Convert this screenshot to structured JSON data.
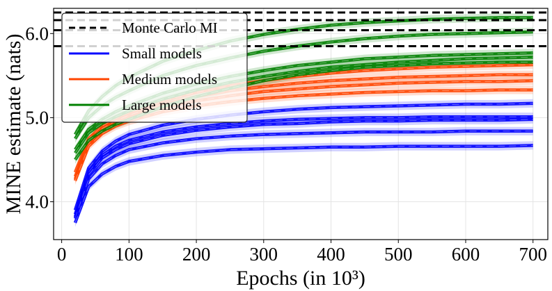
{
  "chart_data": {
    "type": "line",
    "xlabel": "Epochs (in 10³)",
    "ylabel": "MINE estimate (nats)",
    "xlim": [
      -12,
      722
    ],
    "ylim": [
      3.55,
      6.3
    ],
    "xticks": [
      0,
      100,
      200,
      300,
      400,
      500,
      600,
      700
    ],
    "yticks": [
      4.0,
      5.0,
      6.0
    ],
    "ytick_labels": [
      "4.0",
      "5.0",
      "6.0"
    ],
    "grid": true,
    "legend_position": "top-left",
    "x": [
      20,
      40,
      60,
      80,
      100,
      150,
      200,
      250,
      300,
      350,
      400,
      450,
      500,
      550,
      600,
      650,
      700
    ],
    "monte_carlo_mi": [
      6.25,
      6.16,
      6.04,
      5.85
    ],
    "series": [
      {
        "name": "Small models",
        "color": "#0000ff",
        "values": [
          3.9,
          4.4,
          4.6,
          4.72,
          4.8,
          4.91,
          4.98,
          5.03,
          5.07,
          5.1,
          5.12,
          5.13,
          5.14,
          5.15,
          5.16,
          5.16,
          5.17
        ]
      },
      {
        "name": "",
        "color": "#0000ff",
        "values": [
          3.85,
          4.35,
          4.55,
          4.66,
          4.73,
          4.83,
          4.89,
          4.93,
          4.96,
          4.98,
          4.99,
          5.0,
          5.0,
          5.01,
          5.01,
          5.01,
          5.01
        ]
      },
      {
        "name": "",
        "color": "#0000ff",
        "values": [
          3.82,
          4.32,
          4.52,
          4.62,
          4.69,
          4.79,
          4.85,
          4.89,
          4.92,
          4.93,
          4.95,
          4.96,
          4.96,
          4.97,
          4.97,
          4.97,
          4.98
        ]
      },
      {
        "name": "",
        "color": "#0000ff",
        "values": [
          3.8,
          4.27,
          4.45,
          4.55,
          4.62,
          4.7,
          4.75,
          4.78,
          4.8,
          4.81,
          4.82,
          4.83,
          4.83,
          4.83,
          4.84,
          4.84,
          4.84
        ]
      },
      {
        "name": "",
        "color": "#0000ff",
        "values": [
          3.75,
          4.18,
          4.33,
          4.42,
          4.48,
          4.55,
          4.59,
          4.62,
          4.63,
          4.64,
          4.65,
          4.65,
          4.66,
          4.66,
          4.66,
          4.66,
          4.67
        ]
      },
      {
        "name": "Medium models",
        "color": "#ff4500",
        "values": [
          4.35,
          4.75,
          4.9,
          4.99,
          5.06,
          5.2,
          5.3,
          5.38,
          5.44,
          5.49,
          5.53,
          5.56,
          5.58,
          5.6,
          5.61,
          5.62,
          5.63
        ]
      },
      {
        "name": "",
        "color": "#ff4500",
        "values": [
          4.3,
          4.72,
          4.87,
          4.96,
          5.03,
          5.16,
          5.25,
          5.32,
          5.37,
          5.41,
          5.44,
          5.46,
          5.48,
          5.49,
          5.5,
          5.51,
          5.51
        ]
      },
      {
        "name": "",
        "color": "#ff4500",
        "values": [
          4.27,
          4.69,
          4.84,
          4.93,
          5.0,
          5.12,
          5.2,
          5.26,
          5.31,
          5.34,
          5.37,
          5.39,
          5.41,
          5.42,
          5.43,
          5.43,
          5.44
        ]
      },
      {
        "name": "",
        "color": "#ff4500",
        "values": [
          4.25,
          4.66,
          4.81,
          4.9,
          4.96,
          5.07,
          5.14,
          5.19,
          5.23,
          5.26,
          5.28,
          5.3,
          5.31,
          5.32,
          5.32,
          5.33,
          5.33
        ]
      },
      {
        "name": "Large models",
        "color": "#008000",
        "values": [
          4.8,
          5.08,
          5.25,
          5.38,
          5.48,
          5.67,
          5.8,
          5.91,
          5.99,
          6.05,
          6.1,
          6.13,
          6.15,
          6.17,
          6.18,
          6.19,
          6.19
        ]
      },
      {
        "name": "",
        "color": "#008000",
        "values": [
          4.75,
          5.0,
          5.14,
          5.24,
          5.32,
          5.5,
          5.62,
          5.71,
          5.79,
          5.85,
          5.9,
          5.94,
          5.97,
          5.99,
          6.0,
          6.01,
          6.02
        ]
      },
      {
        "name": "",
        "color": "#008000",
        "values": [
          4.62,
          4.86,
          4.98,
          5.07,
          5.14,
          5.29,
          5.4,
          5.49,
          5.56,
          5.62,
          5.66,
          5.7,
          5.72,
          5.74,
          5.75,
          5.76,
          5.77
        ]
      },
      {
        "name": "",
        "color": "#008000",
        "values": [
          4.58,
          4.82,
          4.93,
          5.01,
          5.08,
          5.22,
          5.33,
          5.42,
          5.49,
          5.55,
          5.6,
          5.63,
          5.66,
          5.68,
          5.7,
          5.71,
          5.72
        ]
      },
      {
        "name": "",
        "color": "#008000",
        "values": [
          4.5,
          4.73,
          4.84,
          4.92,
          4.98,
          5.13,
          5.25,
          5.35,
          5.44,
          5.51,
          5.56,
          5.6,
          5.62,
          5.64,
          5.65,
          5.66,
          5.66
        ]
      }
    ],
    "legend": [
      {
        "label": "Monte Carlo MI",
        "color": "#000000",
        "style": "dashed"
      },
      {
        "label": "Small models",
        "color": "#0000ff",
        "style": "solid"
      },
      {
        "label": "Medium models",
        "color": "#ff4500",
        "style": "solid"
      },
      {
        "label": "Large models",
        "color": "#008000",
        "style": "solid"
      }
    ]
  }
}
